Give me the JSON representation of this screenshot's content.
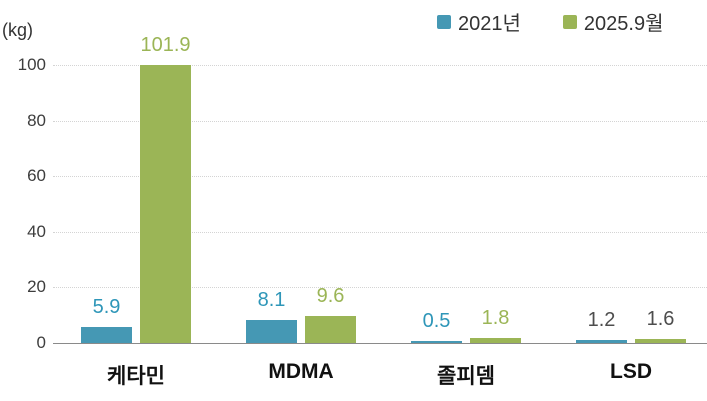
{
  "chart_data": {
    "type": "bar",
    "title": "",
    "unit_label": "(kg)",
    "categories": [
      "케타민",
      "MDMA",
      "졸피뎀",
      "LSD"
    ],
    "series": [
      {
        "name": "2021년",
        "color": "#4598b4",
        "values": [
          5.9,
          8.1,
          0.5,
          1.2
        ],
        "value_labels": [
          "5.9",
          "8.1",
          "0.5",
          "1.2"
        ],
        "label_colors": [
          "#2e96b8",
          "#2e96b8",
          "#2e96b8",
          "#4d4d4d"
        ]
      },
      {
        "name": "2025.9월",
        "color": "#9bb556",
        "values": [
          101.9,
          9.6,
          1.8,
          1.6
        ],
        "value_labels": [
          "101.9",
          "9.6",
          "1.8",
          "1.6"
        ],
        "label_colors": [
          "#9bb556",
          "#9bb556",
          "#9bb556",
          "#4d4d4d"
        ]
      }
    ],
    "ylim": [
      0,
      100
    ],
    "yticks": [
      0,
      20,
      40,
      60,
      80,
      100
    ],
    "ylabel": "",
    "xlabel": "",
    "grid": "horizontal-dotted",
    "legend_position": "top-right",
    "bars_clipped_at_max": true
  }
}
